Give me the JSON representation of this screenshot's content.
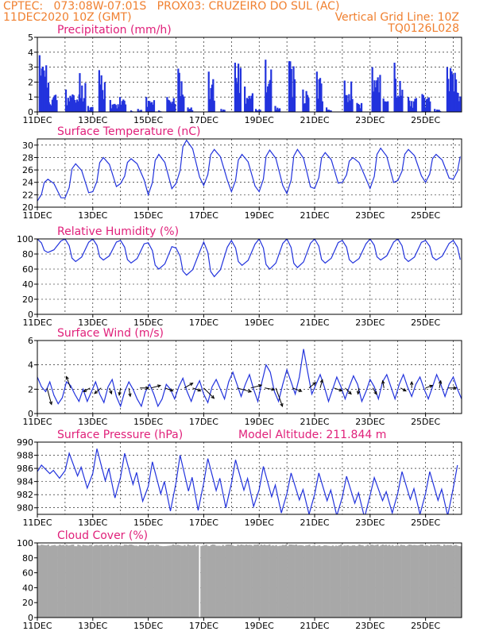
{
  "header": {
    "line1_left": "CPTEC:   073:08W-07:01S   PROX03: CRUZEIRO DO SUL (AC)",
    "line2_left": "11DEC2020 10Z (GMT)",
    "line2_right": "Vertical Grid Line: 10Z",
    "line3_right": "TQ0126L028"
  },
  "colors": {
    "header": "#f08030",
    "title": "#e0207a",
    "series": "#2233dd",
    "cloud": "#a8a8a8",
    "axis": "#000000"
  },
  "chart_data": [
    {
      "type": "bar",
      "title": "Precipitation (mm/h)",
      "ylim": [
        0,
        5
      ],
      "yticks": [
        "0",
        "1",
        "2",
        "3",
        "4",
        "5"
      ],
      "xticks": [
        "11DEC",
        "13DEC",
        "15DEC",
        "17DEC",
        "19DEC",
        "21DEC",
        "23DEC",
        "25DEC"
      ],
      "xtick_days": [
        0,
        2,
        4,
        6,
        8,
        10,
        12,
        14
      ],
      "x_range_days": [
        0,
        15.3
      ],
      "grid": "dashed horizontal and vertical",
      "series": [
        {
          "bursts": [
            {
              "d": 0.05,
              "w": 0.35,
              "p": 3.8
            },
            {
              "d": 0.35,
              "w": 0.35,
              "p": 1.6
            },
            {
              "d": 1.0,
              "w": 0.5,
              "p": 1.5
            },
            {
              "d": 1.5,
              "w": 0.25,
              "p": 2.6
            },
            {
              "d": 1.8,
              "w": 0.2,
              "p": 0.4
            },
            {
              "d": 2.2,
              "w": 0.25,
              "p": 2.8
            },
            {
              "d": 2.6,
              "w": 0.35,
              "p": 0.8
            },
            {
              "d": 2.95,
              "w": 0.25,
              "p": 1.0
            },
            {
              "d": 3.35,
              "w": 0.1,
              "p": 0.1
            },
            {
              "d": 3.6,
              "w": 0.15,
              "p": 0.2
            },
            {
              "d": 3.9,
              "w": 0.3,
              "p": 1.0
            },
            {
              "d": 4.35,
              "w": 0.1,
              "p": 0.1
            },
            {
              "d": 4.65,
              "w": 0.3,
              "p": 1.0
            },
            {
              "d": 5.05,
              "w": 0.25,
              "p": 2.9
            },
            {
              "d": 5.4,
              "w": 0.2,
              "p": 0.3
            },
            {
              "d": 6.15,
              "w": 0.25,
              "p": 2.7
            },
            {
              "d": 6.6,
              "w": 0.15,
              "p": 0.2
            },
            {
              "d": 7.1,
              "w": 0.25,
              "p": 3.3
            },
            {
              "d": 7.45,
              "w": 0.3,
              "p": 1.7
            },
            {
              "d": 7.85,
              "w": 0.2,
              "p": 0.2
            },
            {
              "d": 8.2,
              "w": 0.25,
              "p": 3.5
            },
            {
              "d": 8.55,
              "w": 0.2,
              "p": 0.4
            },
            {
              "d": 9.05,
              "w": 0.25,
              "p": 3.4
            },
            {
              "d": 9.55,
              "w": 0.25,
              "p": 1.5
            },
            {
              "d": 10.05,
              "w": 0.25,
              "p": 2.7
            },
            {
              "d": 10.4,
              "w": 0.2,
              "p": 0.3
            },
            {
              "d": 11.05,
              "w": 0.3,
              "p": 2.1
            },
            {
              "d": 11.5,
              "w": 0.2,
              "p": 0.6
            },
            {
              "d": 12.05,
              "w": 0.3,
              "p": 3.0
            },
            {
              "d": 12.45,
              "w": 0.2,
              "p": 0.9
            },
            {
              "d": 12.85,
              "w": 0.3,
              "p": 3.3
            },
            {
              "d": 13.35,
              "w": 0.3,
              "p": 1.0
            },
            {
              "d": 13.85,
              "w": 0.3,
              "p": 1.2
            },
            {
              "d": 14.3,
              "w": 0.25,
              "p": 0.2
            },
            {
              "d": 14.75,
              "w": 0.35,
              "p": 3.0
            },
            {
              "d": 15.1,
              "w": 0.15,
              "p": 1.3
            }
          ]
        }
      ]
    },
    {
      "type": "line",
      "title": "Surface Temperature (nC)",
      "ylim": [
        20,
        31
      ],
      "yticks": [
        "20",
        "22",
        "24",
        "26",
        "28",
        "30"
      ],
      "xticks": [
        "11DEC",
        "13DEC",
        "15DEC",
        "17DEC",
        "19DEC",
        "21DEC",
        "23DEC",
        "25DEC"
      ],
      "x_range_days": [
        0,
        15.3
      ],
      "grid": "dashed horizontal and vertical",
      "series": [
        {
          "daily_min": [
            21,
            21.5,
            22.5,
            23.8,
            22,
            23.8,
            23.5,
            22.5,
            22.5,
            22.2,
            23,
            24,
            23,
            24.3,
            24,
            24.5
          ],
          "daily_max": [
            24.5,
            27,
            28,
            27.8,
            28.5,
            30.8,
            29.3,
            28.5,
            29.2,
            29.3,
            28.8,
            28,
            29.5,
            29.3,
            28.5,
            28.8
          ]
        }
      ]
    },
    {
      "type": "line",
      "title": "Relative Humidity (%)",
      "ylim": [
        0,
        100
      ],
      "yticks": [
        "0",
        "20",
        "40",
        "60",
        "80",
        "100"
      ],
      "xticks": [
        "11DEC",
        "13DEC",
        "15DEC",
        "17DEC",
        "19DEC",
        "21DEC",
        "23DEC",
        "25DEC"
      ],
      "x_range_days": [
        0,
        15.3
      ],
      "grid": "dashed horizontal and vertical",
      "series": [
        {
          "daily_min": [
            82,
            70,
            72,
            68,
            60,
            52,
            50,
            65,
            60,
            62,
            68,
            68,
            72,
            70,
            72,
            68
          ],
          "daily_max": [
            100,
            100,
            100,
            98,
            95,
            88,
            96,
            98,
            100,
            100,
            100,
            98,
            100,
            100,
            98,
            98
          ]
        }
      ]
    },
    {
      "type": "line",
      "title": "Surface Wind (m/s)",
      "ylim": [
        0,
        6
      ],
      "yticks": [
        "0",
        "2",
        "4",
        "6"
      ],
      "xticks": [
        "11DEC",
        "13DEC",
        "15DEC",
        "17DEC",
        "19DEC",
        "21DEC",
        "23DEC",
        "25DEC"
      ],
      "x_range_days": [
        0,
        15.3
      ],
      "grid": "dashed horizontal and vertical",
      "series": [
        {
          "points": [
            [
              0.0,
              3.0
            ],
            [
              0.15,
              2.2
            ],
            [
              0.3,
              1.8
            ],
            [
              0.45,
              2.6
            ],
            [
              0.6,
              1.5
            ],
            [
              0.75,
              0.8
            ],
            [
              0.9,
              1.3
            ],
            [
              1.05,
              2.6
            ],
            [
              1.2,
              2.3
            ],
            [
              1.35,
              1.6
            ],
            [
              1.5,
              1.0
            ],
            [
              1.65,
              2.0
            ],
            [
              1.8,
              1.0
            ],
            [
              1.95,
              1.8
            ],
            [
              2.1,
              2.6
            ],
            [
              2.25,
              1.6
            ],
            [
              2.4,
              0.9
            ],
            [
              2.55,
              2.2
            ],
            [
              2.7,
              2.8
            ],
            [
              2.85,
              1.4
            ],
            [
              3.0,
              0.6
            ],
            [
              3.15,
              1.8
            ],
            [
              3.3,
              2.6
            ],
            [
              3.45,
              2.0
            ],
            [
              3.6,
              1.2
            ],
            [
              3.75,
              0.6
            ],
            [
              3.9,
              1.8
            ],
            [
              4.05,
              2.4
            ],
            [
              4.2,
              1.6
            ],
            [
              4.35,
              0.6
            ],
            [
              4.5,
              1.2
            ],
            [
              4.65,
              2.4
            ],
            [
              4.8,
              2.0
            ],
            [
              4.95,
              1.2
            ],
            [
              5.1,
              2.2
            ],
            [
              5.25,
              2.9
            ],
            [
              5.4,
              1.8
            ],
            [
              5.55,
              1.0
            ],
            [
              5.7,
              2.0
            ],
            [
              5.85,
              2.7
            ],
            [
              6.0,
              1.6
            ],
            [
              6.15,
              0.9
            ],
            [
              6.3,
              2.2
            ],
            [
              6.45,
              2.8
            ],
            [
              6.6,
              2.0
            ],
            [
              6.75,
              1.2
            ],
            [
              6.9,
              2.6
            ],
            [
              7.05,
              3.4
            ],
            [
              7.2,
              2.4
            ],
            [
              7.35,
              1.4
            ],
            [
              7.5,
              2.4
            ],
            [
              7.65,
              3.2
            ],
            [
              7.8,
              2.0
            ],
            [
              7.95,
              1.0
            ],
            [
              8.1,
              2.6
            ],
            [
              8.25,
              4.0
            ],
            [
              8.4,
              3.4
            ],
            [
              8.55,
              1.8
            ],
            [
              8.7,
              1.0
            ],
            [
              8.85,
              2.4
            ],
            [
              9.0,
              3.6
            ],
            [
              9.15,
              2.6
            ],
            [
              9.3,
              1.6
            ],
            [
              9.45,
              3.0
            ],
            [
              9.6,
              5.3
            ],
            [
              9.75,
              3.4
            ],
            [
              9.9,
              1.6
            ],
            [
              10.05,
              2.4
            ],
            [
              10.2,
              3.2
            ],
            [
              10.35,
              2.2
            ],
            [
              10.5,
              1.0
            ],
            [
              10.65,
              2.0
            ],
            [
              10.8,
              3.0
            ],
            [
              10.95,
              2.2
            ],
            [
              11.1,
              1.2
            ],
            [
              11.25,
              2.2
            ],
            [
              11.4,
              3.1
            ],
            [
              11.55,
              2.4
            ],
            [
              11.7,
              1.0
            ],
            [
              11.85,
              1.8
            ],
            [
              12.0,
              2.8
            ],
            [
              12.15,
              2.2
            ],
            [
              12.3,
              1.2
            ],
            [
              12.45,
              2.6
            ],
            [
              12.6,
              3.2
            ],
            [
              12.75,
              2.2
            ],
            [
              12.9,
              1.2
            ],
            [
              13.05,
              2.4
            ],
            [
              13.2,
              3.2
            ],
            [
              13.35,
              2.2
            ],
            [
              13.5,
              1.4
            ],
            [
              13.65,
              2.4
            ],
            [
              13.8,
              3.0
            ],
            [
              13.95,
              2.0
            ],
            [
              14.1,
              1.2
            ],
            [
              14.25,
              2.2
            ],
            [
              14.4,
              3.2
            ],
            [
              14.55,
              2.4
            ],
            [
              14.7,
              1.4
            ],
            [
              14.85,
              2.4
            ],
            [
              15.0,
              3.0
            ],
            [
              15.15,
              2.0
            ],
            [
              15.3,
              1.2
            ]
          ]
        }
      ],
      "wind_arrows": [
        {
          "d": 0.35,
          "v": 2.1,
          "a": -75,
          "l": 1.4
        },
        {
          "d": 1.2,
          "v": 2.1,
          "a": 110,
          "l": 1.0
        },
        {
          "d": 1.9,
          "v": 2.1,
          "a": -150,
          "l": 0.6
        },
        {
          "d": 2.3,
          "v": 2.1,
          "a": -140,
          "l": 0.7
        },
        {
          "d": 2.6,
          "v": 2.1,
          "a": -70,
          "l": 0.5
        },
        {
          "d": 3.0,
          "v": 2.1,
          "a": -100,
          "l": 0.6
        },
        {
          "d": 3.3,
          "v": 2.1,
          "a": -80,
          "l": 0.7
        },
        {
          "d": 3.7,
          "v": 2.1,
          "a": 0,
          "l": 0.7
        },
        {
          "d": 4.1,
          "v": 2.1,
          "a": 15,
          "l": 0.8
        },
        {
          "d": 4.6,
          "v": 2.1,
          "a": -20,
          "l": 0.7
        },
        {
          "d": 5.3,
          "v": 2.1,
          "a": 30,
          "l": 0.8
        },
        {
          "d": 5.6,
          "v": 2.1,
          "a": -20,
          "l": 0.7
        },
        {
          "d": 6.0,
          "v": 2.1,
          "a": -45,
          "l": 1.2
        },
        {
          "d": 7.2,
          "v": 2.1,
          "a": -15,
          "l": 1.2
        },
        {
          "d": 7.7,
          "v": 2.1,
          "a": 15,
          "l": 0.9
        },
        {
          "d": 8.2,
          "v": 2.1,
          "a": -10,
          "l": 0.8
        },
        {
          "d": 8.6,
          "v": 2.1,
          "a": -70,
          "l": 1.6
        },
        {
          "d": 9.2,
          "v": 2.1,
          "a": -20,
          "l": 0.8
        },
        {
          "d": 9.8,
          "v": 2.1,
          "a": 40,
          "l": 0.7
        },
        {
          "d": 10.2,
          "v": 2.1,
          "a": 75,
          "l": 0.7
        },
        {
          "d": 10.7,
          "v": 2.1,
          "a": -20,
          "l": 0.7
        },
        {
          "d": 11.1,
          "v": 2.1,
          "a": -45,
          "l": 0.7
        },
        {
          "d": 11.6,
          "v": 2.1,
          "a": -100,
          "l": 0.5
        },
        {
          "d": 12.1,
          "v": 2.1,
          "a": -60,
          "l": 0.6
        },
        {
          "d": 12.5,
          "v": 2.1,
          "a": 100,
          "l": 0.6
        },
        {
          "d": 13.1,
          "v": 2.1,
          "a": -30,
          "l": 0.5
        },
        {
          "d": 13.5,
          "v": 2.1,
          "a": 90,
          "l": 0.5
        },
        {
          "d": 14.0,
          "v": 2.1,
          "a": 20,
          "l": 0.6
        },
        {
          "d": 14.5,
          "v": 2.1,
          "a": 80,
          "l": 0.6
        },
        {
          "d": 14.8,
          "v": 2.1,
          "a": 0,
          "l": 0.7
        }
      ]
    },
    {
      "type": "line",
      "title": "Surface Pressure (hPa)",
      "subtitle": "Model Altitude: 211.844 m",
      "ylim": [
        979,
        990
      ],
      "yticks": [
        "980",
        "982",
        "984",
        "986",
        "988",
        "990"
      ],
      "xticks": [
        "11DEC",
        "13DEC",
        "15DEC",
        "17DEC",
        "19DEC",
        "21DEC",
        "23DEC",
        "25DEC"
      ],
      "x_range_days": [
        0,
        15.3
      ],
      "grid": "dashed horizontal and vertical",
      "series": [
        {
          "daily_max": [
            986.5,
            988.3,
            989.0,
            988.3,
            987.0,
            988.0,
            987.5,
            987.3,
            986.3,
            985.3,
            985.3,
            984.8,
            984.6,
            985.5,
            985.5,
            986.5
          ],
          "daily_min": [
            984.5,
            983.0,
            981.5,
            981.0,
            979.5,
            979.6,
            980.0,
            980.2,
            979.2,
            979.0,
            978.8,
            978.5,
            979.2,
            979.0,
            978.8,
            979.5
          ]
        }
      ]
    },
    {
      "type": "bar",
      "title": "Cloud Cover (%)",
      "ylim": [
        0,
        100
      ],
      "yticks": [
        "0",
        "20",
        "40",
        "60",
        "80",
        "100"
      ],
      "xticks": [
        "11DEC",
        "13DEC",
        "15DEC",
        "17DEC",
        "19DEC",
        "21DEC",
        "23DEC",
        "25DEC"
      ],
      "x_range_days": [
        0,
        15.3
      ],
      "grid": "dashed horizontal and vertical",
      "series": [
        {
          "level": 98,
          "clear_gap_day": 5.82
        }
      ]
    }
  ]
}
